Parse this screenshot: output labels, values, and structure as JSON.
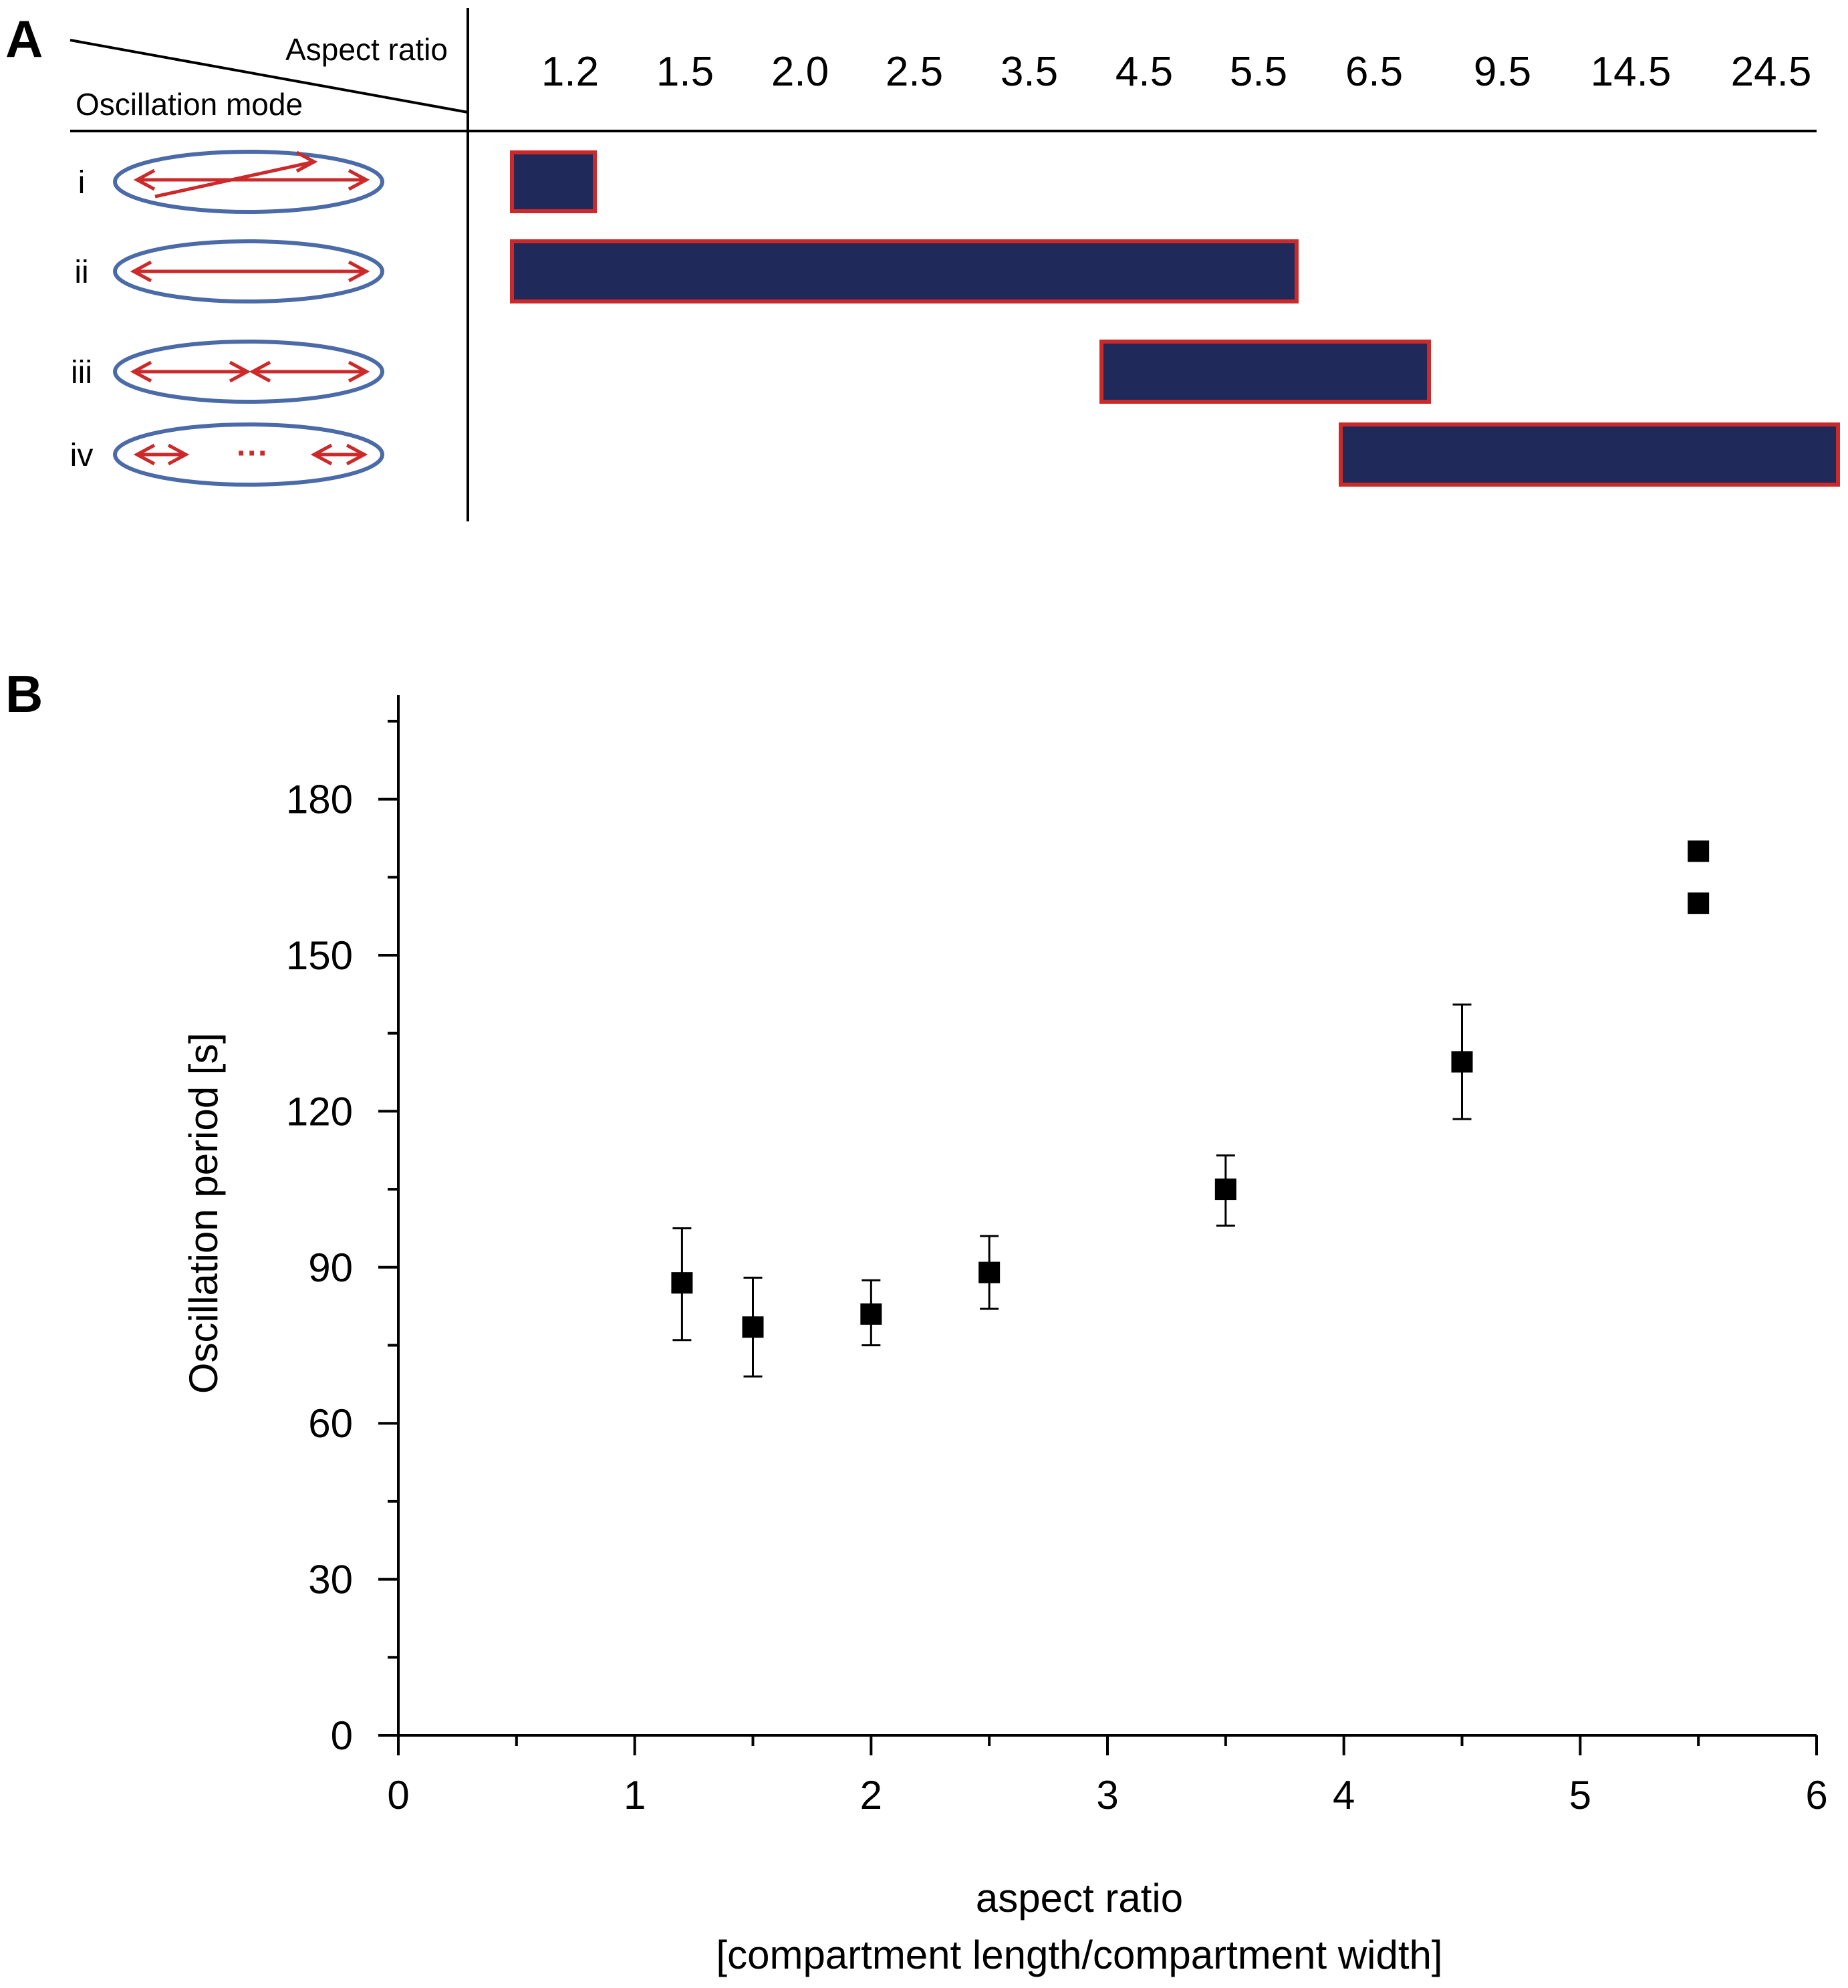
{
  "panel_labels": {
    "a": "A",
    "b": "B"
  },
  "panel_a": {
    "corner_top": "Aspect ratio",
    "corner_bottom": "Oscillation mode",
    "aspect_ratios": [
      "1.2",
      "1.5",
      "2.0",
      "2.5",
      "3.5",
      "4.5",
      "5.5",
      "6.5",
      "9.5",
      "14.5",
      "24.5"
    ],
    "modes": [
      {
        "label": "i",
        "icon": "zigzag-oscillation-icon",
        "range": [
          "1.2",
          "1.2"
        ]
      },
      {
        "label": "ii",
        "icon": "pole-to-pole-oscillation-icon",
        "range": [
          "1.2",
          "5.5"
        ]
      },
      {
        "label": "iii",
        "icon": "double-oscillation-icon",
        "range": [
          "4.5",
          "6.5"
        ]
      },
      {
        "label": "iv",
        "icon": "multiple-oscillation-icon",
        "range": [
          "6.5",
          "24.5"
        ]
      }
    ],
    "colors": {
      "bar_fill": "#1f2a5a",
      "bar_stroke": "#cc2a2a",
      "ellipse": "#4a6aa8",
      "arrow": "#cc2a2a"
    }
  },
  "chart_data": {
    "type": "scatter",
    "xlabel": "aspect ratio",
    "xlabel_line2": "[compartment length/compartment width]",
    "ylabel": "Oscillation period [s]",
    "xlim": [
      0,
      6
    ],
    "ylim": [
      0,
      200
    ],
    "xticks": [
      0,
      1,
      2,
      3,
      4,
      5,
      6
    ],
    "yticks": [
      0,
      30,
      60,
      90,
      120,
      150,
      180
    ],
    "points": [
      {
        "x": 1.2,
        "y": 87,
        "err_low": 76,
        "err_high": 97.5
      },
      {
        "x": 1.5,
        "y": 78.5,
        "err_low": 69,
        "err_high": 88
      },
      {
        "x": 2.0,
        "y": 81,
        "err_low": 75,
        "err_high": 87.5
      },
      {
        "x": 2.5,
        "y": 89,
        "err_low": 82,
        "err_high": 96
      },
      {
        "x": 3.5,
        "y": 105,
        "err_low": 98,
        "err_high": 111.5
      },
      {
        "x": 4.5,
        "y": 129.5,
        "err_low": 118.5,
        "err_high": 140.5
      },
      {
        "x": 5.5,
        "y": 170
      },
      {
        "x": 5.5,
        "y": 160
      }
    ],
    "grid": false
  }
}
